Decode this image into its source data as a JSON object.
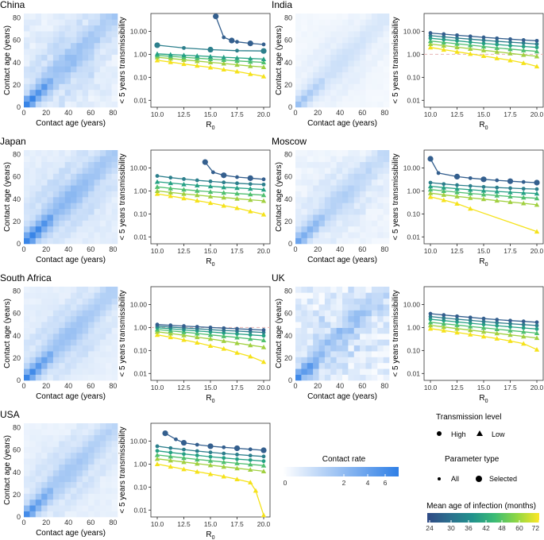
{
  "figure": {
    "country_order": [
      "China",
      "India",
      "Japan",
      "Moscow",
      "South Africa",
      "UK",
      "USA"
    ],
    "heatmap_axes": {
      "xlabel": "Contact age (years)",
      "ylabel": "Contact age (years)",
      "ticks": [
        "0",
        "20",
        "40",
        "60",
        "80"
      ]
    },
    "line_axes": {
      "xlabel_base": "R",
      "xlabel_sub": "0",
      "ylabel": "< 5 years transmissibility",
      "xticks": [
        "10.0",
        "12.5",
        "15.0",
        "17.5",
        "20.0"
      ],
      "yticks": [
        "0.01",
        "0.10",
        "1.00",
        "10.00"
      ]
    },
    "legends": {
      "contact_rate": {
        "title": "Contact rate",
        "ticks": [
          "0",
          "2",
          "4",
          "6"
        ]
      },
      "transmission": {
        "title": "Transmission level",
        "high": "High",
        "low": "Low"
      },
      "parameter": {
        "title": "Parameter type",
        "all": "All",
        "selected": "Selected"
      },
      "mean_age": {
        "title": "Mean age of infection (months)",
        "ticks": [
          "24",
          "30",
          "36",
          "42",
          "48",
          "60",
          "72"
        ]
      }
    }
  },
  "colors": {
    "heat_low": "#ffffff",
    "heat_high": "#2f7fe6",
    "series": [
      "#345f8e",
      "#2c7f8c",
      "#25a184",
      "#4fbf6f",
      "#a1d040",
      "#f5e21a"
    ],
    "refline": "#e8b4b4",
    "axis": "#222222",
    "grid_frame": "#333333"
  },
  "chart_data": [
    {
      "title": "China",
      "type": "heatmap+line",
      "heat_scale": 1.15,
      "heat_noise": 0.1,
      "x": [
        10,
        11.25,
        12.5,
        13.75,
        15,
        16.25,
        17.5,
        18.75,
        20
      ],
      "ylim": [
        0.005,
        60
      ],
      "ref_y": null,
      "series": [
        {
          "name": "high-1",
          "marker": "circle",
          "selected": true,
          "x": [
            15.5,
            16.25,
            17.0,
            17.5,
            18.75,
            20
          ],
          "values": [
            45,
            5.5,
            4.0,
            3.5,
            3.0,
            2.7
          ]
        },
        {
          "name": "high-2",
          "marker": "circle",
          "selected": true,
          "x": [
            10,
            12.5,
            15,
            17.5,
            20
          ],
          "values": [
            2.5,
            1.9,
            1.6,
            1.45,
            1.4
          ]
        },
        {
          "name": "mid-1",
          "marker": "triangle",
          "selected": false,
          "values": [
            1.05,
            0.98,
            0.92,
            0.86,
            0.8,
            0.75,
            0.7,
            0.66,
            0.62
          ]
        },
        {
          "name": "mid-2",
          "marker": "triangle",
          "selected": false,
          "values": [
            0.9,
            0.82,
            0.75,
            0.68,
            0.62,
            0.57,
            0.52,
            0.48,
            0.45
          ]
        },
        {
          "name": "low-1",
          "marker": "triangle",
          "selected": false,
          "values": [
            0.75,
            0.66,
            0.58,
            0.51,
            0.45,
            0.4,
            0.35,
            0.31,
            0.28
          ]
        },
        {
          "name": "low-2",
          "marker": "triangle",
          "selected": false,
          "values": [
            0.55,
            0.46,
            0.38,
            0.32,
            0.27,
            0.22,
            0.18,
            0.14,
            0.11
          ]
        }
      ]
    },
    {
      "title": "India",
      "type": "heatmap+line",
      "heat_scale": 0.55,
      "heat_noise": 0.05,
      "x": [
        10,
        11.25,
        12.5,
        13.75,
        15,
        16.25,
        17.5,
        18.75,
        20
      ],
      "ylim": [
        0.005,
        60
      ],
      "ref_y": 1.0,
      "series": [
        {
          "name": "s1",
          "marker": "circle",
          "selected": false,
          "values": [
            8.5,
            7.6,
            6.8,
            6.1,
            5.5,
            5.0,
            4.6,
            4.2,
            3.9
          ]
        },
        {
          "name": "s2",
          "marker": "circle",
          "selected": false,
          "values": [
            6.5,
            5.8,
            5.1,
            4.6,
            4.1,
            3.7,
            3.4,
            3.1,
            2.8
          ]
        },
        {
          "name": "s3",
          "marker": "circle",
          "selected": false,
          "values": [
            5.0,
            4.4,
            3.9,
            3.4,
            3.0,
            2.7,
            2.4,
            2.2,
            2.0
          ]
        },
        {
          "name": "s4",
          "marker": "triangle",
          "selected": false,
          "values": [
            3.8,
            3.3,
            2.9,
            2.5,
            2.2,
            1.9,
            1.7,
            1.5,
            1.35
          ]
        },
        {
          "name": "s5",
          "marker": "triangle",
          "selected": false,
          "values": [
            2.8,
            2.4,
            2.05,
            1.75,
            1.5,
            1.3,
            1.1,
            0.95,
            0.82
          ]
        },
        {
          "name": "s6",
          "marker": "triangle",
          "selected": false,
          "values": [
            2.0,
            1.6,
            1.3,
            1.05,
            0.85,
            0.68,
            0.55,
            0.42,
            0.3
          ]
        }
      ]
    },
    {
      "title": "Japan",
      "type": "heatmap+line",
      "heat_scale": 1.25,
      "heat_noise": 0.05,
      "x": [
        10,
        11.25,
        12.5,
        13.75,
        15,
        16.25,
        17.5,
        18.75,
        20
      ],
      "ylim": [
        0.005,
        60
      ],
      "ref_y": null,
      "series": [
        {
          "name": "sel",
          "marker": "circle",
          "selected": true,
          "x": [
            14.5,
            15.25,
            16.25,
            17.5,
            18.75,
            20
          ],
          "values": [
            18,
            6.5,
            4.8,
            4.0,
            3.6,
            3.2
          ]
        },
        {
          "name": "s2",
          "marker": "circle",
          "selected": false,
          "values": [
            4.5,
            3.8,
            3.3,
            2.9,
            2.6,
            2.35,
            2.15,
            2.0,
            1.9
          ]
        },
        {
          "name": "s3",
          "marker": "triangle",
          "selected": false,
          "values": [
            2.5,
            2.2,
            1.95,
            1.75,
            1.6,
            1.45,
            1.35,
            1.25,
            1.15
          ]
        },
        {
          "name": "s4",
          "marker": "triangle",
          "selected": false,
          "values": [
            1.5,
            1.3,
            1.15,
            1.02,
            0.92,
            0.84,
            0.77,
            0.71,
            0.66
          ]
        },
        {
          "name": "s5",
          "marker": "triangle",
          "selected": false,
          "values": [
            1.0,
            0.86,
            0.75,
            0.66,
            0.58,
            0.52,
            0.46,
            0.41,
            0.37
          ]
        },
        {
          "name": "s6",
          "marker": "triangle",
          "selected": false,
          "values": [
            0.75,
            0.6,
            0.48,
            0.38,
            0.3,
            0.23,
            0.18,
            0.13,
            0.095
          ]
        }
      ]
    },
    {
      "title": "Moscow",
      "type": "heatmap+line",
      "heat_scale": 0.8,
      "heat_noise": 0.1,
      "x": [
        10,
        11.25,
        12.5,
        13.75,
        15,
        16.25,
        17.5,
        18.75,
        20
      ],
      "ylim": [
        0.005,
        60
      ],
      "ref_y": null,
      "series": [
        {
          "name": "sel",
          "marker": "circle",
          "selected": true,
          "x": [
            10,
            10.75,
            12.5,
            13.75,
            15,
            16.25,
            17.5,
            18.75,
            20
          ],
          "values": [
            25,
            6.0,
            4.2,
            3.6,
            3.2,
            2.9,
            2.65,
            2.45,
            2.3
          ]
        },
        {
          "name": "s2",
          "marker": "circle",
          "selected": false,
          "values": [
            2.3,
            2.0,
            1.8,
            1.65,
            1.5,
            1.4,
            1.32,
            1.25,
            1.2
          ]
        },
        {
          "name": "s3",
          "marker": "triangle",
          "selected": false,
          "values": [
            1.6,
            1.4,
            1.25,
            1.13,
            1.03,
            0.95,
            0.88,
            0.82,
            0.77
          ]
        },
        {
          "name": "s4",
          "marker": "triangle",
          "selected": false,
          "values": [
            1.15,
            1.0,
            0.88,
            0.78,
            0.7,
            0.63,
            0.57,
            0.52,
            0.48
          ]
        },
        {
          "name": "s5",
          "marker": "triangle",
          "selected": false,
          "values": [
            0.8,
            0.68,
            0.58,
            0.5,
            0.44,
            0.38,
            0.33,
            0.29,
            0.25
          ]
        },
        {
          "name": "s6",
          "marker": "triangle",
          "selected": false,
          "x": [
            10,
            11.25,
            12.5,
            13.75,
            20
          ],
          "values": [
            0.55,
            0.4,
            0.28,
            0.17,
            0.017
          ]
        }
      ]
    },
    {
      "title": "South Africa",
      "type": "heatmap+line",
      "heat_scale": 1.1,
      "heat_noise": 0.04,
      "x": [
        10,
        11.25,
        12.5,
        13.75,
        15,
        16.25,
        17.5,
        18.75,
        20
      ],
      "ylim": [
        0.005,
        60
      ],
      "ref_y": 1.0,
      "series": [
        {
          "name": "s1",
          "marker": "circle",
          "selected": false,
          "values": [
            1.35,
            1.25,
            1.16,
            1.08,
            1.0,
            0.94,
            0.88,
            0.83,
            0.78
          ]
        },
        {
          "name": "s2",
          "marker": "circle",
          "selected": false,
          "values": [
            1.15,
            1.05,
            0.96,
            0.88,
            0.81,
            0.75,
            0.7,
            0.65,
            0.61
          ]
        },
        {
          "name": "s3",
          "marker": "circle",
          "selected": false,
          "values": [
            0.98,
            0.88,
            0.79,
            0.71,
            0.64,
            0.58,
            0.53,
            0.48,
            0.44
          ]
        },
        {
          "name": "s4",
          "marker": "triangle",
          "selected": false,
          "values": [
            0.82,
            0.72,
            0.63,
            0.55,
            0.48,
            0.42,
            0.37,
            0.32,
            0.28
          ]
        },
        {
          "name": "s5",
          "marker": "triangle",
          "selected": false,
          "values": [
            0.65,
            0.55,
            0.46,
            0.38,
            0.32,
            0.26,
            0.21,
            0.17,
            0.14
          ]
        },
        {
          "name": "s6",
          "marker": "triangle",
          "selected": false,
          "values": [
            0.48,
            0.38,
            0.29,
            0.22,
            0.16,
            0.12,
            0.08,
            0.055,
            0.032
          ]
        }
      ]
    },
    {
      "title": "UK",
      "type": "heatmap+line",
      "heat_scale": 1.0,
      "heat_noise": 0.3,
      "x": [
        10,
        11.25,
        12.5,
        13.75,
        15,
        16.25,
        17.5,
        18.75,
        20
      ],
      "ylim": [
        0.005,
        60
      ],
      "ref_y": null,
      "series": [
        {
          "name": "s1",
          "marker": "circle",
          "selected": false,
          "values": [
            4.0,
            3.5,
            3.1,
            2.75,
            2.45,
            2.2,
            2.0,
            1.85,
            1.7
          ]
        },
        {
          "name": "s2",
          "marker": "circle",
          "selected": false,
          "values": [
            3.0,
            2.6,
            2.3,
            2.05,
            1.82,
            1.63,
            1.47,
            1.34,
            1.22
          ]
        },
        {
          "name": "s3",
          "marker": "circle",
          "selected": false,
          "values": [
            2.3,
            2.0,
            1.75,
            1.54,
            1.36,
            1.2,
            1.07,
            0.96,
            0.86
          ]
        },
        {
          "name": "s4",
          "marker": "triangle",
          "selected": false,
          "values": [
            1.7,
            1.47,
            1.28,
            1.11,
            0.97,
            0.85,
            0.74,
            0.65,
            0.57
          ]
        },
        {
          "name": "s5",
          "marker": "triangle",
          "selected": false,
          "values": [
            1.25,
            1.06,
            0.9,
            0.77,
            0.66,
            0.56,
            0.48,
            0.41,
            0.35
          ]
        },
        {
          "name": "s6",
          "marker": "triangle",
          "selected": false,
          "values": [
            0.9,
            0.74,
            0.61,
            0.5,
            0.41,
            0.33,
            0.26,
            0.2,
            0.11
          ]
        }
      ]
    },
    {
      "title": "USA",
      "type": "heatmap+line",
      "heat_scale": 1.0,
      "heat_noise": 0.05,
      "x": [
        10,
        11.25,
        12.5,
        13.75,
        15,
        16.25,
        17.5,
        18.75,
        20
      ],
      "ylim": [
        0.005,
        60
      ],
      "ref_y": null,
      "series": [
        {
          "name": "sel",
          "marker": "circle",
          "selected": true,
          "x": [
            10.75,
            11.75,
            12.5,
            13.75,
            15,
            16.25,
            17.5,
            18.75,
            20
          ],
          "values": [
            22,
            12,
            8.5,
            7.0,
            6.0,
            5.4,
            4.9,
            4.4,
            4.0
          ]
        },
        {
          "name": "s2",
          "marker": "circle",
          "selected": false,
          "values": [
            6.0,
            5.0,
            4.3,
            3.7,
            3.25,
            2.9,
            2.6,
            2.35,
            2.15
          ]
        },
        {
          "name": "s3",
          "marker": "circle",
          "selected": false,
          "values": [
            3.8,
            3.2,
            2.75,
            2.4,
            2.1,
            1.85,
            1.65,
            1.5,
            1.35
          ]
        },
        {
          "name": "s4",
          "marker": "triangle",
          "selected": false,
          "values": [
            2.5,
            2.15,
            1.85,
            1.6,
            1.4,
            1.23,
            1.09,
            0.97,
            0.87
          ]
        },
        {
          "name": "s5",
          "marker": "triangle",
          "selected": false,
          "values": [
            1.7,
            1.45,
            1.23,
            1.05,
            0.9,
            0.77,
            0.66,
            0.57,
            0.49
          ]
        },
        {
          "name": "s6",
          "marker": "triangle",
          "selected": false,
          "x": [
            10,
            11.25,
            12.5,
            13.75,
            15,
            16.25,
            17.5,
            18.75,
            19.25,
            20
          ],
          "values": [
            1.0,
            0.78,
            0.6,
            0.47,
            0.37,
            0.29,
            0.22,
            0.16,
            0.07,
            0.006
          ]
        }
      ]
    }
  ]
}
